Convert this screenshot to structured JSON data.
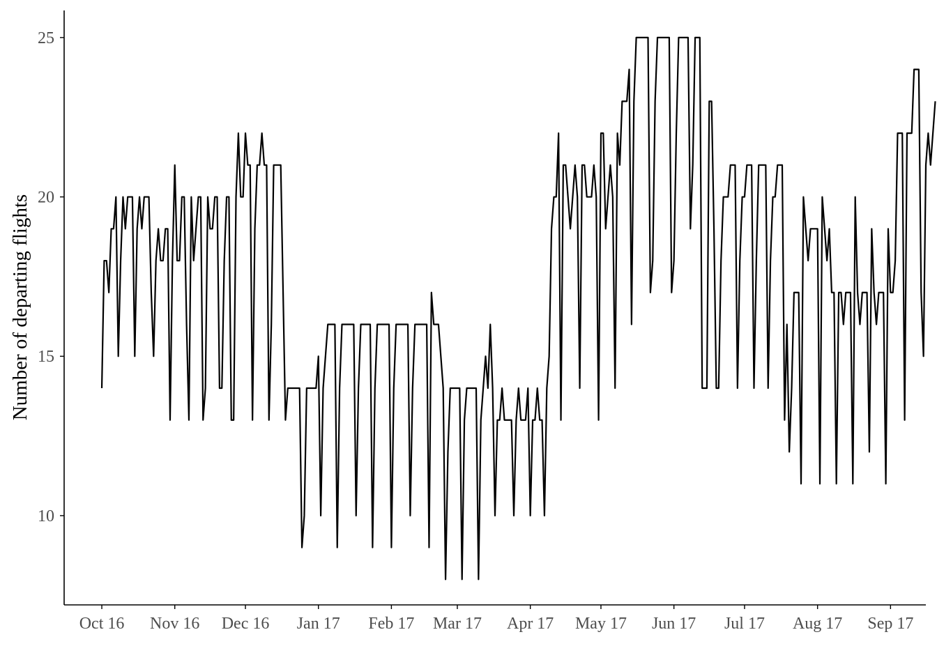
{
  "chart_data": {
    "type": "line",
    "title": "",
    "xlabel": "",
    "ylabel": "Number of departing flights",
    "x_start": "2016-10-01",
    "x_end": "2017-08-31",
    "xlim": [
      "2016-09-15",
      "2017-09-16"
    ],
    "ylim": [
      7.2,
      25.85
    ],
    "grid": false,
    "legend": "none",
    "line_color": "#000000",
    "x_ticks": [
      {
        "date": "2016-10-01",
        "label": "Oct 16"
      },
      {
        "date": "2016-11-01",
        "label": "Nov 16"
      },
      {
        "date": "2016-12-01",
        "label": "Dec 16"
      },
      {
        "date": "2017-01-01",
        "label": "Jan 17"
      },
      {
        "date": "2017-02-01",
        "label": "Feb 17"
      },
      {
        "date": "2017-03-01",
        "label": "Mar 17"
      },
      {
        "date": "2017-04-01",
        "label": "Apr 17"
      },
      {
        "date": "2017-05-01",
        "label": "May 17"
      },
      {
        "date": "2017-06-01",
        "label": "Jun 17"
      },
      {
        "date": "2017-07-01",
        "label": "Jul 17"
      },
      {
        "date": "2017-08-01",
        "label": "Aug 17"
      },
      {
        "date": "2017-09-01",
        "label": "Sep 17"
      }
    ],
    "y_ticks": [
      {
        "value": 10,
        "label": "10"
      },
      {
        "value": 15,
        "label": "15"
      },
      {
        "value": 20,
        "label": "20"
      },
      {
        "value": 25,
        "label": "25"
      }
    ],
    "series": [
      {
        "values": [
          14,
          18,
          18,
          17,
          19,
          19,
          20,
          15,
          18,
          20,
          19,
          20,
          20,
          20,
          15,
          19,
          20,
          19,
          20,
          20,
          20,
          17,
          15,
          18,
          19,
          18,
          18,
          19,
          19,
          13,
          18,
          21,
          18,
          18,
          20,
          20,
          16,
          13,
          20,
          18,
          19,
          20,
          20,
          13,
          14,
          20,
          19,
          19,
          20,
          20,
          14,
          14,
          18,
          20,
          20,
          13,
          13,
          20,
          22,
          20,
          20,
          22,
          21,
          21,
          13,
          19,
          21,
          21,
          22,
          21,
          21,
          13,
          16,
          21,
          21,
          21,
          21,
          17,
          13,
          14,
          14,
          14,
          14,
          14,
          14,
          9,
          10,
          14,
          14,
          14,
          14,
          14,
          15,
          10,
          14,
          15,
          16,
          16,
          16,
          16,
          9,
          14,
          16,
          16,
          16,
          16,
          16,
          16,
          10,
          14,
          16,
          16,
          16,
          16,
          16,
          9,
          14,
          16,
          16,
          16,
          16,
          16,
          16,
          9,
          14,
          16,
          16,
          16,
          16,
          16,
          16,
          10,
          14,
          16,
          16,
          16,
          16,
          16,
          16,
          9,
          17,
          16,
          16,
          16,
          15,
          14,
          8,
          12,
          14,
          14,
          14,
          14,
          14,
          8,
          13,
          14,
          14,
          14,
          14,
          14,
          8,
          13,
          14,
          15,
          14,
          16,
          14,
          10,
          13,
          13,
          14,
          13,
          13,
          13,
          13,
          10,
          13,
          14,
          13,
          13,
          13,
          14,
          10,
          13,
          13,
          14,
          13,
          13,
          10,
          14,
          15,
          19,
          20,
          20,
          22,
          13,
          21,
          21,
          20,
          19,
          20,
          21,
          20,
          14,
          21,
          21,
          20,
          20,
          20,
          21,
          20,
          13,
          22,
          22,
          19,
          20,
          21,
          20,
          14,
          22,
          21,
          23,
          23,
          23,
          24,
          16,
          23,
          25,
          25,
          25,
          25,
          25,
          25,
          17,
          18,
          23,
          25,
          25,
          25,
          25,
          25,
          25,
          17,
          18,
          22,
          25,
          25,
          25,
          25,
          25,
          19,
          21,
          25,
          25,
          25,
          14,
          14,
          14,
          23,
          23,
          19,
          14,
          14,
          18,
          20,
          20,
          20,
          21,
          21,
          21,
          14,
          18,
          20,
          20,
          21,
          21,
          21,
          14,
          18,
          21,
          21,
          21,
          21,
          14,
          18,
          20,
          20,
          21,
          21,
          21,
          13,
          16,
          12,
          14,
          17,
          17,
          17,
          11,
          20,
          19,
          18,
          19,
          19,
          19,
          19,
          11,
          20,
          19,
          18,
          19,
          17,
          17,
          11,
          17,
          17,
          16,
          17,
          17,
          17,
          11,
          20,
          17,
          16,
          17,
          17,
          17,
          12,
          19,
          17,
          16,
          17,
          17,
          17,
          11,
          19,
          17,
          17,
          18,
          22,
          22,
          22,
          13,
          22,
          22,
          22,
          24,
          24,
          24,
          17,
          15,
          21,
          22,
          21,
          22,
          23
        ]
      }
    ]
  }
}
